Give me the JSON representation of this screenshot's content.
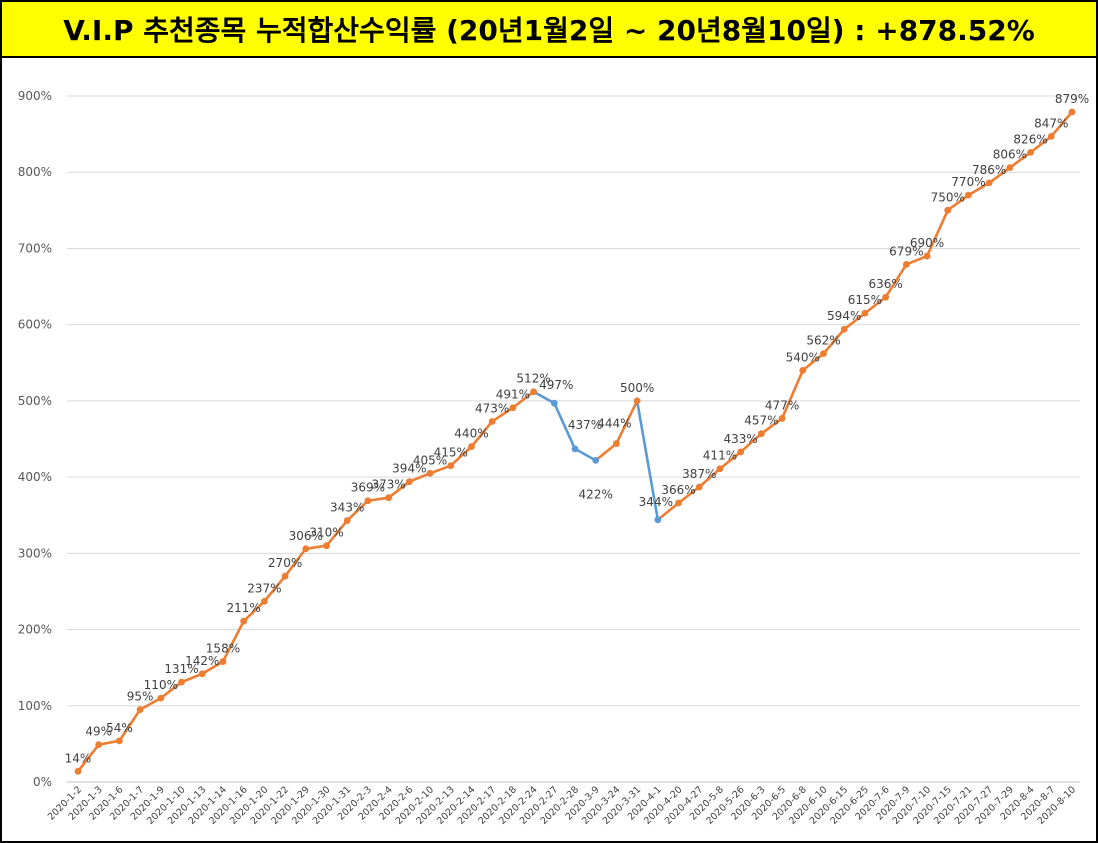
{
  "title": "V.I.P 추천종목 누적합산수익률 (20년1월2일 ~ 20년8월10일) : +878.52%",
  "colors": {
    "title_bg": "#ffff00",
    "line": "#ed7d31",
    "decline": "#5b9bd5",
    "grid": "#d9d9d9",
    "text": "#404040"
  },
  "chart_data": {
    "type": "line",
    "title": "V.I.P 추천종목 누적합산수익률 (20년1월2일 ~ 20년8월10일) : +878.52%",
    "xlabel": "",
    "ylabel": "",
    "ylim": [
      0,
      900
    ],
    "yticks": [
      "0%",
      "100%",
      "200%",
      "300%",
      "400%",
      "500%",
      "600%",
      "700%",
      "800%",
      "900%"
    ],
    "grid": true,
    "legend": "none",
    "declining_segments_color": "blue",
    "categories": [
      "2020-1-2",
      "2020-1-3",
      "2020-1-6",
      "2020-1-7",
      "2020-1-9",
      "2020-1-10",
      "2020-1-13",
      "2020-1-14",
      "2020-1-16",
      "2020-1-20",
      "2020-1-22",
      "2020-1-29",
      "2020-1-30",
      "2020-1-31",
      "2020-2-3",
      "2020-2-4",
      "2020-2-6",
      "2020-2-10",
      "2020-2-13",
      "2020-2-14",
      "2020-2-17",
      "2020-2-18",
      "2020-2-24",
      "2020-2-27",
      "2020-2-28",
      "2020-3-9",
      "2020-3-24",
      "2020-3-31",
      "2020-4-1",
      "2020-4-20",
      "2020-4-27",
      "2020-5-8",
      "2020-5-26",
      "2020-6-3",
      "2020-6-5",
      "2020-6-8",
      "2020-6-10",
      "2020-6-15",
      "2020-6-25",
      "2020-7-6",
      "2020-7-9",
      "2020-7-10",
      "2020-7-15",
      "2020-7-21",
      "2020-7-27",
      "2020-7-29",
      "2020-8-4",
      "2020-8-7",
      "2020-8-10"
    ],
    "values": [
      14,
      49,
      54,
      95,
      110,
      131,
      142,
      158,
      211,
      237,
      270,
      306,
      310,
      343,
      369,
      373,
      394,
      405,
      415,
      440,
      473,
      491,
      512,
      497,
      437,
      422,
      444,
      500,
      344,
      366,
      387,
      411,
      433,
      457,
      477,
      540,
      562,
      594,
      615,
      636,
      679,
      690,
      750,
      770,
      786,
      806,
      826,
      847,
      879
    ],
    "labels": [
      "14%",
      "49%",
      "54%",
      "95%",
      "110%",
      "131%",
      "142%",
      "158%",
      "211%",
      "237%",
      "270%",
      "306%",
      "310%",
      "343%",
      "369%",
      "373%",
      "394%",
      "405%",
      "415%",
      "440%",
      "473%",
      "491%",
      "512%",
      "497%",
      "437%",
      "422%",
      "444%",
      "500%",
      "344%",
      "366%",
      "387%",
      "411%",
      "433%",
      "457%",
      "477%",
      "540%",
      "562%",
      "594%",
      "615%",
      "636%",
      "679%",
      "690%",
      "750%",
      "770%",
      "786%",
      "806%",
      "826%",
      "847%",
      "879%"
    ]
  }
}
